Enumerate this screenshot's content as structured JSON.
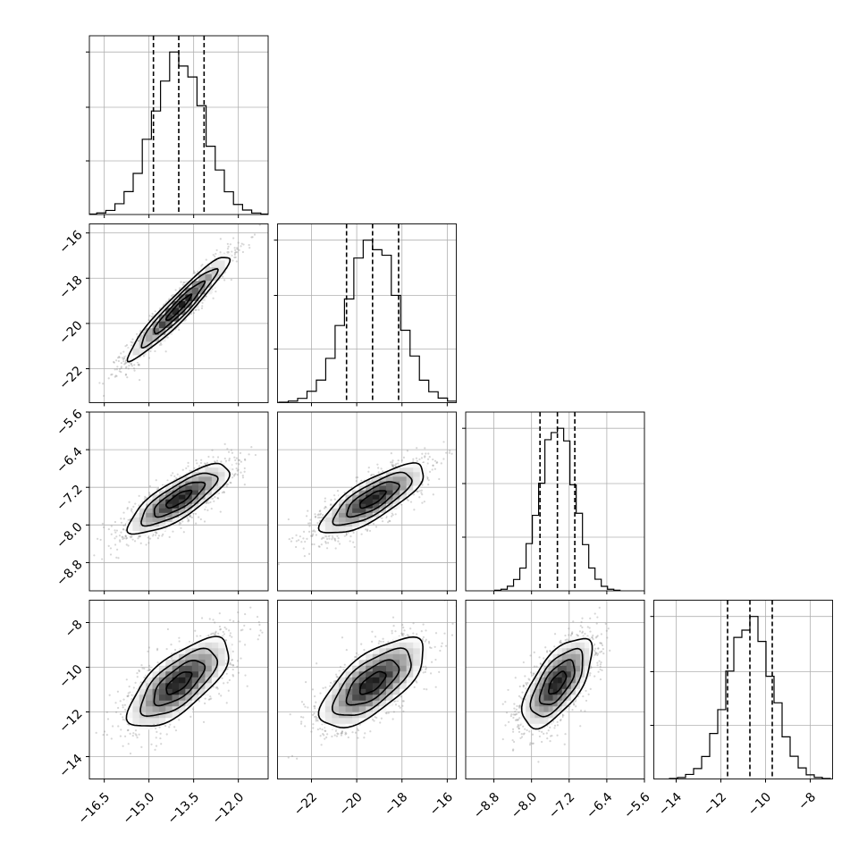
{
  "chart_data": {
    "type": "corner",
    "n_params": 4,
    "grid": true,
    "params": [
      {
        "mean": -14.0,
        "std": 0.85,
        "lim": [
          -17.0,
          -11.0
        ],
        "ticks": [
          -16.5,
          -15.0,
          -13.5,
          -12.0
        ],
        "tick_labels": [
          "−16.5",
          "−15.0",
          "−13.5",
          "−12.0"
        ],
        "quantiles": [
          -14.85,
          -14.0,
          -13.15
        ]
      },
      {
        "mean": -19.3,
        "std": 1.15,
        "lim": [
          -23.5,
          -15.6
        ],
        "ticks": [
          -22,
          -20,
          -18,
          -16
        ],
        "tick_labels": [
          "−22",
          "−20",
          "−18",
          "−16"
        ],
        "quantiles": [
          -20.45,
          -19.3,
          -18.15
        ]
      },
      {
        "mean": -7.45,
        "std": 0.37,
        "lim": [
          -9.4,
          -5.6
        ],
        "ticks": [
          -8.8,
          -8.0,
          -7.2,
          -6.4,
          -5.6
        ],
        "tick_labels": [
          "−8.8",
          "−8.0",
          "−7.2",
          "−6.4",
          "−5.6"
        ],
        "quantiles": [
          -7.82,
          -7.45,
          -7.08
        ]
      },
      {
        "mean": -10.7,
        "std": 1.0,
        "lim": [
          -15.0,
          -7.0
        ],
        "ticks": [
          -14,
          -12,
          -10,
          -8
        ],
        "tick_labels": [
          "−14",
          "−12",
          "−10",
          "−8"
        ],
        "quantiles": [
          -11.7,
          -10.7,
          -9.7
        ]
      }
    ],
    "correlations": [
      [
        1.0,
        0.95,
        0.8,
        0.7
      ],
      [
        0.95,
        1.0,
        0.78,
        0.68
      ],
      [
        0.8,
        0.78,
        1.0,
        0.65
      ],
      [
        0.7,
        0.68,
        0.65,
        1.0
      ]
    ],
    "histogram_bins": 20,
    "contour_levels_sigma": [
      0.5,
      1.0,
      1.5,
      2.0
    ]
  }
}
